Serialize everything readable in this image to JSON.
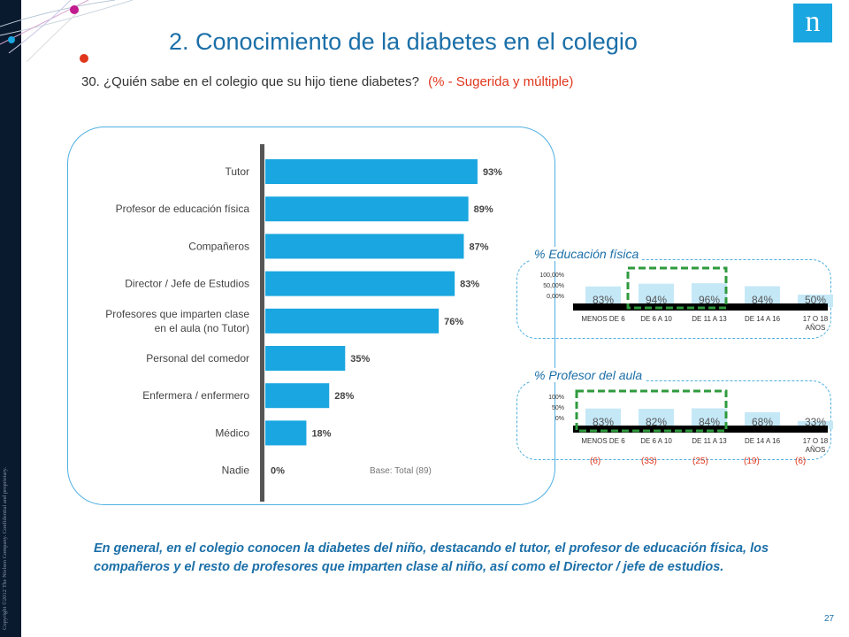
{
  "header": {
    "title": "2. Conocimiento de la diabetes en el colegio",
    "question": "30. ¿Quién sabe en el colegio que su hijo tiene diabetes?",
    "question_note": "(% - Sugerida y múltiple)",
    "logo_letter": "n"
  },
  "chart_data": [
    {
      "type": "bar",
      "orientation": "horizontal",
      "categories": [
        "Tutor",
        "Profesor de educación física",
        "Compañeros",
        "Director / Jefe de Estudios",
        "Profesores que imparten clase en el aula (no Tutor)",
        "Personal del comedor",
        "Enfermera / enfermero",
        "Médico",
        "Nadie"
      ],
      "category_lines": [
        [
          "Tutor"
        ],
        [
          "Profesor de educación física"
        ],
        [
          "Compañeros"
        ],
        [
          "Director / Jefe de Estudios"
        ],
        [
          "Profesores que imparten clase",
          "en el aula (no Tutor)"
        ],
        [
          "Personal del comedor"
        ],
        [
          "Enfermera / enfermero"
        ],
        [
          "Médico"
        ],
        [
          "Nadie"
        ]
      ],
      "values": [
        93,
        89,
        87,
        83,
        76,
        35,
        28,
        18,
        0
      ],
      "value_labels": [
        "93%",
        "89%",
        "87%",
        "83%",
        "76%",
        "35%",
        "28%",
        "18%",
        "0%"
      ],
      "xlim": [
        0,
        100
      ],
      "base_label": "Base: Total (89)",
      "colors": {
        "bar": "#1aa6e0",
        "axis": "#555555",
        "label": "#444444"
      }
    },
    {
      "type": "bar",
      "title": "% Educación física",
      "categories": [
        "MENOS DE 6",
        "DE 6 A 10",
        "DE 11 A 13",
        "DE 14 A 16",
        "17 O 18 AÑOS"
      ],
      "category_lines": [
        [
          "MENOS DE 6"
        ],
        [
          "DE 6 A 10"
        ],
        [
          "DE 11 A 13"
        ],
        [
          "DE 14 A 16"
        ],
        [
          "17 O 18",
          "AÑOS"
        ]
      ],
      "values": [
        83,
        94,
        96,
        84,
        50
      ],
      "value_labels": [
        "83%",
        "94%",
        "96%",
        "84%",
        "50%"
      ],
      "y_ticks": [
        "100,00%",
        "50,00%",
        "0,00%"
      ],
      "ylim": [
        0,
        100
      ],
      "highlighted": [
        "DE 6 A 10",
        "DE 11 A 13"
      ],
      "colors": {
        "bar": "#c5e8f7",
        "highlight": "#2e9a3c",
        "axis": "#000000"
      }
    },
    {
      "type": "bar",
      "title": "% Profesor del aula",
      "categories": [
        "MENOS DE 6",
        "DE 6 A 10",
        "DE 11 A 13",
        "DE 14 A 16",
        "17 O 18 AÑOS"
      ],
      "category_lines": [
        [
          "MENOS DE 6"
        ],
        [
          "DE 6 A 10"
        ],
        [
          "DE 11 A 13"
        ],
        [
          "DE 14 A 16"
        ],
        [
          "17 O 18",
          "AÑOS"
        ]
      ],
      "values": [
        83,
        82,
        84,
        68,
        33
      ],
      "value_labels": [
        "83%",
        "82%",
        "84%",
        "68%",
        "33%"
      ],
      "y_ticks": [
        "100%",
        "50%",
        "0%"
      ],
      "ylim": [
        0,
        100
      ],
      "highlighted": [
        "MENOS DE 6",
        "DE 6 A 10",
        "DE 11 A 13"
      ],
      "colors": {
        "bar": "#c5e8f7",
        "highlight": "#2e9a3c",
        "axis": "#000000"
      }
    }
  ],
  "sample_sizes": [
    "(6)",
    "(33)",
    "(25)",
    "(19)",
    "(6)"
  ],
  "summary": "En general, en el colegio conocen la diabetes del niño, destacando el tutor, el profesor de educación física, los compañeros y el resto de profesores que imparten clase al niño, así como el Director / jefe de estudios.",
  "footer": {
    "copyright": "Copyright ©2012 The Nielsen Company. Confidential and proprietary.",
    "page_number": "27"
  }
}
